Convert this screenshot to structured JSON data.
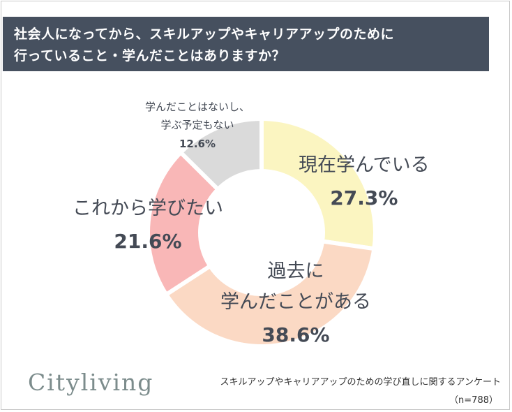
{
  "title": {
    "line1": "社会人になってから、スキルアップやキャリアアップのために",
    "line2": "行っていること・学んだことはありますか？"
  },
  "chart_data": {
    "type": "pie",
    "donut": true,
    "categories": [
      "現在学んでいる",
      "過去に学んだことがある",
      "これから学びたい",
      "学んだことはないし、学ぶ予定もない"
    ],
    "values": [
      27.3,
      38.6,
      21.6,
      12.6
    ],
    "value_labels": [
      "27.3%",
      "38.6%",
      "21.6%",
      "12.6%"
    ],
    "colors": [
      "#fbf5c1",
      "#fbd9c4",
      "#f9b7b7",
      "#dadada"
    ]
  },
  "labels": {
    "current": "現在学んでいる",
    "past_line1": "過去に",
    "past_line2": "学んだことがある",
    "future": "これから学びたい",
    "none_line1": "学んだことはないし、",
    "none_line2": "学ぶ予定もない"
  },
  "footer": {
    "logo": "Cityliving",
    "survey_name": "スキルアップやキャリアアップのための学び直しに関するアンケート",
    "sample": "（n=788）"
  }
}
